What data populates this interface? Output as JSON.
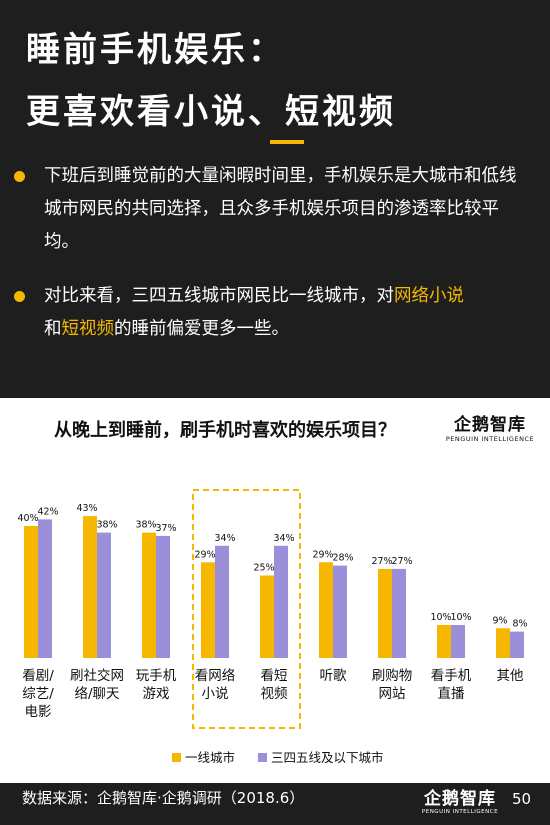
{
  "header": {
    "title_line1": "睡前手机娱乐：",
    "title_line2": "更喜欢看小说、短视频",
    "accent_color": "#f5b700"
  },
  "bullets": {
    "b1": "下班后到睡觉前的大量闲暇时间里，手机娱乐是大城市和低线城市网民的共同选择，且众多手机娱乐项目的渗透率比较平均。",
    "b2_part1": "对比来看，三四五线城市网民比一线城市，对",
    "b2_hl1": "网络小说",
    "b2_part2": "和",
    "b2_hl2": "短视频",
    "b2_part3": "的睡前偏爱更多一些。"
  },
  "logo": {
    "name": "企鹅智库",
    "sub": "PENGUIN INTELLIGENCE"
  },
  "chart_data": {
    "type": "bar",
    "title": "从晚上到睡前，刷手机时喜欢的娱乐项目？",
    "categories": [
      [
        "看剧/",
        "综艺/",
        "电影"
      ],
      [
        "刷社交网",
        "络/聊天"
      ],
      [
        "玩手机",
        "游戏"
      ],
      [
        "看网络",
        "小说"
      ],
      [
        "看短",
        "视频"
      ],
      [
        "听歌"
      ],
      [
        "刷购物",
        "网站"
      ],
      [
        "看手机",
        "直播"
      ],
      [
        "其他"
      ]
    ],
    "series": [
      {
        "name": "一线城市",
        "color": "#f5b700",
        "values": [
          40,
          43,
          38,
          29,
          25,
          29,
          27,
          10,
          9
        ]
      },
      {
        "name": "三四五线及以下城市",
        "color": "#9b8fd9",
        "values": [
          42,
          38,
          37,
          34,
          34,
          28,
          27,
          10,
          8
        ]
      }
    ],
    "value_suffix": "%",
    "highlight_categories": [
      3,
      4
    ],
    "legend_position": "bottom",
    "grid": false
  },
  "footer": {
    "source": "数据来源：企鹅智库·企鹅调研（2018.6）",
    "page": "50"
  }
}
